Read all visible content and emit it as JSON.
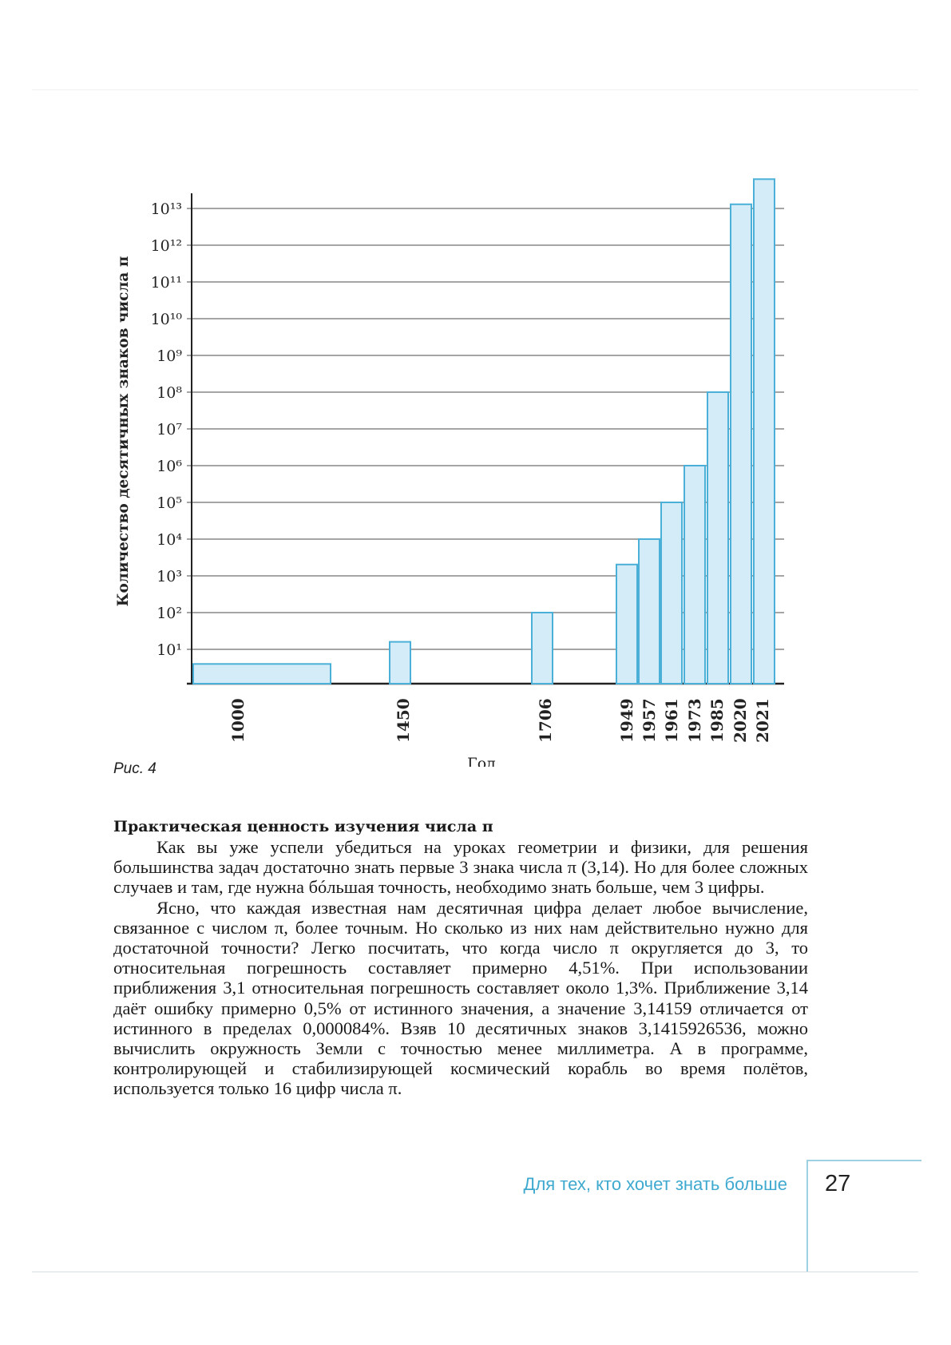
{
  "figure": {
    "caption": "Рис. 4"
  },
  "chart_data": {
    "type": "bar",
    "ylabel": "Количество десятичных знаков числа π",
    "xlabel": "Год",
    "y_scale": "log",
    "ylim": [
      1,
      100000000000000
    ],
    "y_tick_labels": [
      "10¹",
      "10²",
      "10³",
      "10⁴",
      "10⁵",
      "10⁶",
      "10⁷",
      "10⁸",
      "10⁹",
      "10¹⁰",
      "10¹¹",
      "10¹²",
      "10¹³"
    ],
    "grid": true,
    "categories": [
      "1000",
      "1450",
      "1706",
      "1949",
      "1957",
      "1961",
      "1973",
      "1985",
      "2020",
      "2021"
    ],
    "values": [
      4,
      16,
      100,
      2037,
      10000,
      100000,
      1000000,
      100000000,
      13000000000000,
      62800000000000
    ],
    "bar_color": "#d4ecf7",
    "bar_edge_color": "#4bb0d8"
  },
  "section": {
    "heading": "Практическая ценность изучения числа π",
    "paragraphs": [
      "Как вы уже успели убедиться на уроках геометрии и физики, для решения большинства задач достаточно знать первые 3 знака числа π (3,14). Но для более сложных случаев и там, где нужна бóльшая точность, необходимо знать больше, чем 3 цифры.",
      "Ясно, что каждая известная нам десятичная цифра делает любое вычисление, связанное с числом π, более точным. Но сколько из них нам действительно нужно для достаточной точности? Легко посчитать, что когда число π округляется до 3, то относительная погрешность составляет примерно 4,51%. При использовании приближения 3,1 относительная погрешность составляет около 1,3%. Приближение 3,14 даёт ошибку примерно 0,5% от истинного значения, а значение 3,14159 отличается от истинного в пределах 0,000084%. Взяв 10 десятичных знаков 3,1415926536, можно вычислить окружность Земли с точностью менее миллиметра. А в программе, контролирующей и стабилизирующей космический корабль во время полётов, используется только 16 цифр числа π."
    ]
  },
  "footer": {
    "section_title": "Для тех, кто хочет знать больше",
    "page_number": "27"
  }
}
